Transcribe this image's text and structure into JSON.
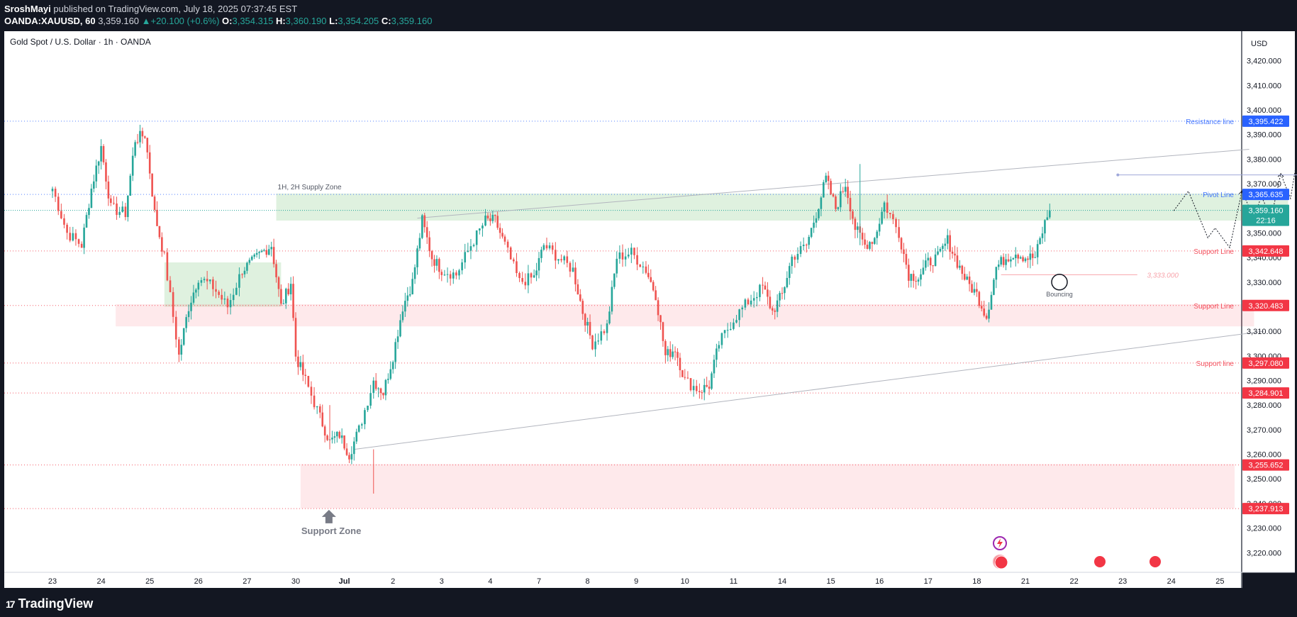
{
  "header": {
    "publisher": "SroshMayi",
    "published_text": "published on TradingView.com, July 18, 2025 07:37:45 EST",
    "symbol": "OANDA:XAUUSD, 60",
    "last": "3,359.160",
    "change_arrow": "▲",
    "change": "+20.100 (+0.6%)",
    "o_label": "O:",
    "o": "3,354.315",
    "h_label": "H:",
    "h": "3,360.190",
    "l_label": "L:",
    "l": "3,354.205",
    "c_label": "C:",
    "c": "3,359.160"
  },
  "footer": {
    "logo_mark": "17",
    "logo_text": "TradingView"
  },
  "chart_data": {
    "type": "candlestick",
    "title": "Gold Spot / U.S. Dollar · 1h · OANDA",
    "currency": "USD",
    "ylim": [
      3212,
      3432
    ],
    "y_ticks": [
      3220,
      3230,
      3240,
      3250,
      3260,
      3270,
      3280,
      3290,
      3300,
      3310,
      3320,
      3330,
      3340,
      3350,
      3360,
      3370,
      3380,
      3390,
      3400,
      3410,
      3420
    ],
    "x_ticks": [
      "23",
      "24",
      "25",
      "26",
      "27",
      "30",
      "Jul",
      "2",
      "3",
      "4",
      "7",
      "8",
      "9",
      "10",
      "11",
      "14",
      "15",
      "16",
      "17",
      "18",
      "21",
      "22",
      "23",
      "24",
      "25"
    ],
    "last_price": {
      "value": 3359.16,
      "label": "3,359.160",
      "countdown": "22:16"
    },
    "horizontal_levels": [
      {
        "value": 3395.422,
        "label": "3,395.422",
        "text": "Resistance line",
        "color": "#2962ff"
      },
      {
        "value": 3365.635,
        "label": "3,365.635",
        "text": "Pivot Line",
        "color": "#2962ff"
      },
      {
        "value": 3342.648,
        "label": "3,342.648",
        "text": "Support Line",
        "color": "#f23645"
      },
      {
        "value": 3320.483,
        "label": "3,320.483",
        "text": "Support Line",
        "color": "#f23645"
      },
      {
        "value": 3297.08,
        "label": "3,297.080",
        "text": "Support line",
        "color": "#f23645"
      },
      {
        "value": 3284.901,
        "label": "3,284.901",
        "text": "",
        "color": "#f23645"
      },
      {
        "value": 3255.652,
        "label": "3,255.652",
        "text": "",
        "color": "#f23645"
      },
      {
        "value": 3237.913,
        "label": "3,237.913",
        "text": "",
        "color": "#f23645"
      }
    ],
    "zones": [
      {
        "label": "1H, 2H Supply Zone",
        "y1": 3355,
        "y2": 3366,
        "x1": 4.6,
        "x2": 25.4,
        "color": "green"
      },
      {
        "label": "",
        "y1": 3320,
        "y2": 3338,
        "x1": 2.3,
        "x2": 4.7,
        "color": "green"
      },
      {
        "label": "",
        "y1": 3312,
        "y2": 3321,
        "x1": 1.3,
        "x2": 24.7,
        "color": "red"
      },
      {
        "label": "Support Zone",
        "y1": 3238,
        "y2": 3256,
        "x1": 5.1,
        "x2": 24.3,
        "color": "red"
      }
    ],
    "annotations": [
      {
        "text": "3,373.575",
        "value": 3373.575
      },
      {
        "text": "3,333.000",
        "value": 3333.0
      },
      {
        "text": "Bouncing",
        "value": 3330
      }
    ],
    "trendlines": [
      {
        "from": [
          7.5,
          3356
        ],
        "to": [
          24.6,
          3384
        ]
      },
      {
        "from": [
          6.2,
          3262
        ],
        "to": [
          24.9,
          3310
        ]
      }
    ],
    "projection_path": [
      [
        23.05,
        3359
      ],
      [
        23.35,
        3367
      ],
      [
        23.75,
        3348
      ],
      [
        23.9,
        3352
      ],
      [
        24.2,
        3344
      ],
      [
        24.45,
        3367
      ],
      [
        24.7,
        3356
      ],
      [
        24.85,
        3365
      ],
      [
        25.05,
        3356
      ],
      [
        25.25,
        3374
      ],
      [
        25.45,
        3364
      ],
      [
        25.7,
        3394
      ]
    ],
    "candle_path": [
      [
        0.0,
        3368
      ],
      [
        0.3,
        3350
      ],
      [
        0.6,
        3345
      ],
      [
        0.8,
        3368
      ],
      [
        1.0,
        3385
      ],
      [
        1.2,
        3360
      ],
      [
        1.5,
        3358
      ],
      [
        1.7,
        3388
      ],
      [
        1.9,
        3390
      ],
      [
        2.0,
        3375
      ],
      [
        2.1,
        3358
      ],
      [
        2.3,
        3340
      ],
      [
        2.6,
        3300
      ],
      [
        2.8,
        3320
      ],
      [
        3.0,
        3332
      ],
      [
        3.3,
        3328
      ],
      [
        3.6,
        3320
      ],
      [
        3.9,
        3335
      ],
      [
        4.1,
        3338
      ],
      [
        4.3,
        3342
      ],
      [
        4.5,
        3345
      ],
      [
        4.7,
        3320
      ],
      [
        4.9,
        3330
      ],
      [
        5.0,
        3300
      ],
      [
        5.2,
        3290
      ],
      [
        5.5,
        3275
      ],
      [
        5.7,
        3265
      ],
      [
        5.9,
        3268
      ],
      [
        6.1,
        3260
      ],
      [
        6.3,
        3270
      ],
      [
        6.6,
        3290
      ],
      [
        6.8,
        3285
      ],
      [
        7.0,
        3300
      ],
      [
        7.2,
        3320
      ],
      [
        7.4,
        3330
      ],
      [
        7.6,
        3355
      ],
      [
        7.8,
        3340
      ],
      [
        8.0,
        3335
      ],
      [
        8.3,
        3333
      ],
      [
        8.6,
        3345
      ],
      [
        8.9,
        3355
      ],
      [
        9.1,
        3355
      ],
      [
        9.3,
        3345
      ],
      [
        9.6,
        3330
      ],
      [
        9.9,
        3332
      ],
      [
        10.1,
        3345
      ],
      [
        10.4,
        3340
      ],
      [
        10.7,
        3335
      ],
      [
        10.9,
        3318
      ],
      [
        11.1,
        3305
      ],
      [
        11.4,
        3312
      ],
      [
        11.6,
        3340
      ],
      [
        11.9,
        3342
      ],
      [
        12.2,
        3335
      ],
      [
        12.4,
        3325
      ],
      [
        12.6,
        3300
      ],
      [
        12.8,
        3303
      ],
      [
        13.0,
        3290
      ],
      [
        13.3,
        3286
      ],
      [
        13.5,
        3288
      ],
      [
        13.7,
        3305
      ],
      [
        14.0,
        3315
      ],
      [
        14.3,
        3322
      ],
      [
        14.6,
        3328
      ],
      [
        14.8,
        3318
      ],
      [
        15.0,
        3325
      ],
      [
        15.2,
        3340
      ],
      [
        15.5,
        3345
      ],
      [
        15.7,
        3358
      ],
      [
        15.9,
        3372
      ],
      [
        16.1,
        3360
      ],
      [
        16.3,
        3370
      ],
      [
        16.5,
        3352
      ],
      [
        16.7,
        3345
      ],
      [
        16.9,
        3348
      ],
      [
        17.1,
        3362
      ],
      [
        17.4,
        3350
      ],
      [
        17.6,
        3333
      ],
      [
        17.8,
        3332
      ],
      [
        18.0,
        3338
      ],
      [
        18.2,
        3340
      ],
      [
        18.4,
        3347
      ],
      [
        18.6,
        3338
      ],
      [
        18.8,
        3330
      ],
      [
        19.0,
        3325
      ],
      [
        19.2,
        3316
      ],
      [
        19.4,
        3336
      ],
      [
        19.6,
        3340
      ],
      [
        19.8,
        3342
      ],
      [
        20.0,
        3340
      ],
      [
        20.2,
        3340
      ],
      [
        20.4,
        3354
      ],
      [
        20.5,
        3359
      ]
    ]
  }
}
